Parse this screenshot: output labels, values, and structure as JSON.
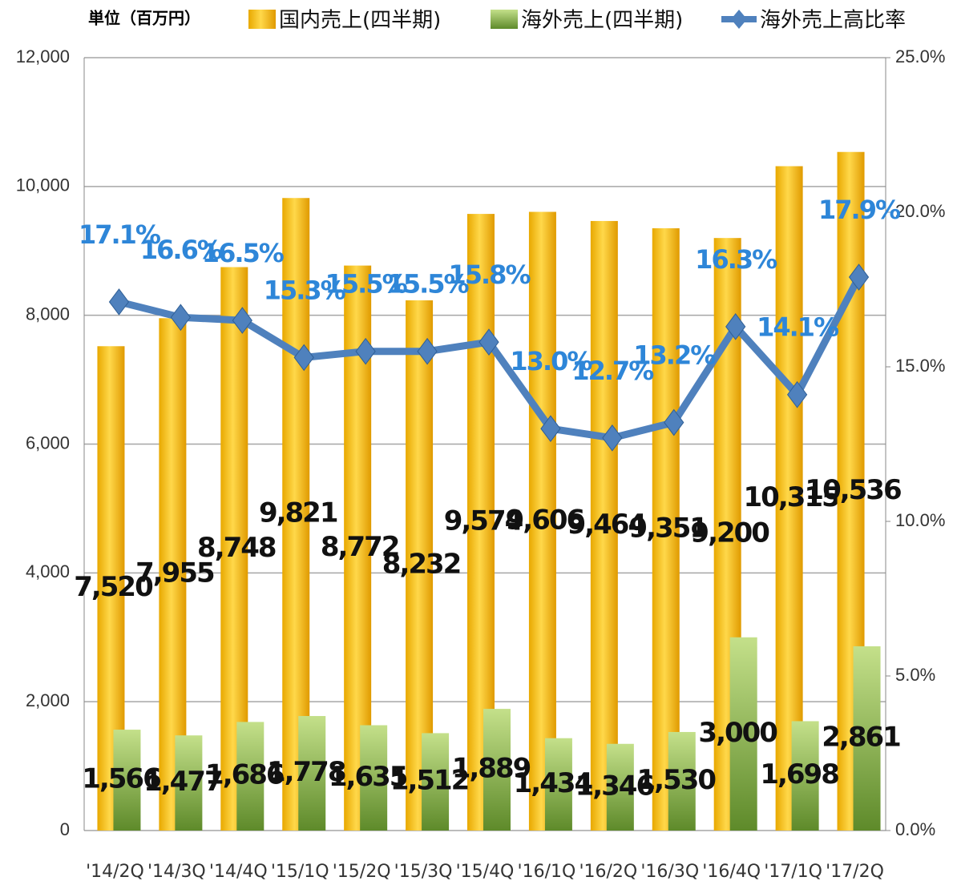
{
  "chart_data": {
    "type": "bar_line",
    "unit_label": "単位（百万円）",
    "categories": [
      "'14/2Q",
      "'14/3Q",
      "'14/4Q",
      "'15/1Q",
      "'15/2Q",
      "'15/3Q",
      "'15/4Q",
      "'16/1Q",
      "'16/2Q",
      "'16/3Q",
      "'16/4Q",
      "'17/1Q",
      "'17/2Q"
    ],
    "series": [
      {
        "name": "国内売上(四半期)",
        "color": "#ffc000",
        "type": "bar",
        "values": [
          7520,
          7955,
          8748,
          9821,
          8772,
          8232,
          9574,
          9606,
          9464,
          9351,
          9200,
          10315,
          10536
        ],
        "value_labels": [
          "7,520",
          "7,955",
          "8,748",
          "9,821",
          "8,772",
          "8,232",
          "9,574",
          "9,606",
          "9,464",
          "9,351",
          "9,200",
          "10,315",
          "10,536"
        ]
      },
      {
        "name": "海外売上(四半期)",
        "color": "#8cb84a",
        "type": "bar",
        "values": [
          1566,
          1477,
          1686,
          1778,
          1635,
          1512,
          1889,
          1434,
          1346,
          1530,
          3000,
          1698,
          2861
        ],
        "value_labels": [
          "1,566",
          "1,477",
          "1,686",
          "1,778",
          "1,635",
          "1,512",
          "1,889",
          "1,434",
          "1,346",
          "1,530",
          "3,000",
          "1,698",
          "2,861"
        ]
      },
      {
        "name": "海外売上高比率",
        "color": "#4f81bd",
        "type": "line",
        "axis": "y2",
        "values": [
          17.1,
          16.6,
          16.5,
          15.3,
          15.5,
          15.5,
          15.8,
          13.0,
          12.7,
          13.2,
          16.3,
          14.1,
          17.9
        ],
        "value_labels": [
          "17.1%",
          "16.6%",
          "16.5%",
          "15.3%",
          "15.5%",
          "15.5%",
          "15.8%",
          "13.0%",
          "12.7%",
          "13.2%",
          "16.3%",
          "14.1%",
          "17.9%"
        ]
      }
    ],
    "ylim": [
      0,
      12000
    ],
    "yticks": [
      0,
      {
        "value": 2000,
        "label": "2,000"
      },
      {
        "value": 4000,
        "label": "4,000"
      },
      {
        "value": 6000,
        "label": "6,000"
      },
      {
        "value": 8000,
        "label": "8,000"
      },
      {
        "value": 10000,
        "label": "10,000"
      },
      {
        "value": 12000,
        "label": "12,000"
      }
    ],
    "y2lim": [
      0,
      25
    ],
    "y2ticks": [
      {
        "value": 0,
        "label": "0.0%"
      },
      {
        "value": 5,
        "label": "5.0%"
      },
      {
        "value": 10,
        "label": "10.0%"
      },
      {
        "value": 15,
        "label": "15.0%"
      },
      {
        "value": 20,
        "label": "20.0%"
      },
      {
        "value": 25,
        "label": "25.0%"
      }
    ],
    "grid": true
  }
}
